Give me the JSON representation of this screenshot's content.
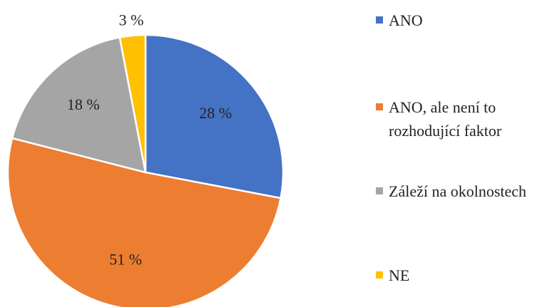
{
  "chart_data": {
    "type": "pie",
    "categories": [
      "ANO",
      "ANO, ale není to rozhodující faktor",
      "Záleží na okolnostech",
      "NE"
    ],
    "values": [
      28,
      51,
      18,
      3
    ],
    "value_labels": [
      "28 %",
      "51 %",
      "18 %",
      "3 %"
    ],
    "colors": [
      "#4472c4",
      "#ed7d31",
      "#a5a5a5",
      "#ffc000"
    ],
    "legend": "right"
  }
}
